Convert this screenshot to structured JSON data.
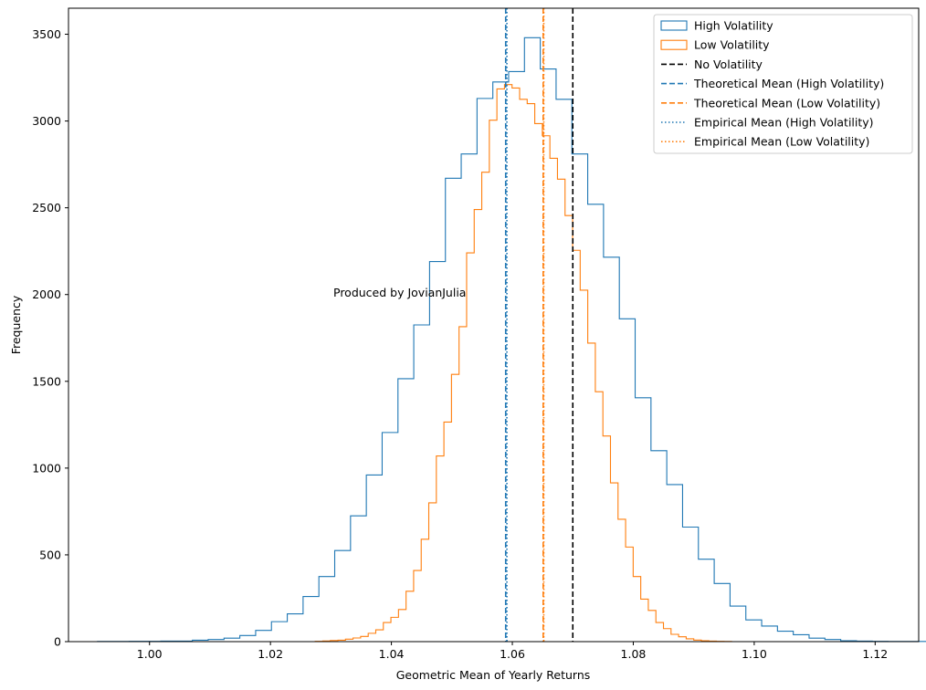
{
  "chart_data": {
    "type": "histogram",
    "title": "",
    "xlabel": "Geometric Mean of Yearly Returns",
    "ylabel": "Frequency",
    "xlim": [
      0.9866,
      1.1272
    ],
    "ylim": [
      0,
      3650
    ],
    "xticks": [
      1.0,
      1.02,
      1.04,
      1.06,
      1.08,
      1.1,
      1.12
    ],
    "xtick_labels": [
      "1.00",
      "1.02",
      "1.04",
      "1.06",
      "1.08",
      "1.10",
      "1.12"
    ],
    "yticks": [
      0,
      500,
      1000,
      1500,
      2000,
      2500,
      3000,
      3500
    ],
    "ytick_labels": [
      "0",
      "500",
      "1000",
      "1500",
      "2000",
      "2500",
      "3000",
      "3500"
    ],
    "annotation": {
      "text": "Produced by JovianJulia",
      "x": 1.03,
      "y": 2000
    },
    "legend_position": "top-right",
    "series": [
      {
        "name": "High Volatility",
        "color": "#1f77b4",
        "bin_start": 0.9914,
        "bin_width": 0.002615,
        "counts": [
          1,
          1,
          2,
          2,
          3,
          3,
          8,
          12,
          20,
          35,
          65,
          115,
          160,
          260,
          375,
          525,
          725,
          960,
          1205,
          1515,
          1825,
          2190,
          2670,
          2810,
          3130,
          3225,
          3285,
          3480,
          3300,
          3125,
          2810,
          2520,
          2215,
          1860,
          1405,
          1100,
          905,
          660,
          475,
          335,
          205,
          125,
          90,
          60,
          40,
          20,
          12,
          5,
          3,
          2,
          1,
          1,
          1
        ]
      },
      {
        "name": "Low Volatility",
        "color": "#ff7f0e",
        "bin_start": 1.0274,
        "bin_width": 0.001252,
        "counts": [
          2,
          4,
          6,
          8,
          14,
          21,
          30,
          48,
          68,
          110,
          140,
          185,
          290,
          410,
          590,
          800,
          1070,
          1265,
          1540,
          1815,
          2240,
          2490,
          2705,
          3005,
          3185,
          3210,
          3190,
          3125,
          3100,
          2985,
          2915,
          2785,
          2665,
          2455,
          2255,
          2025,
          1720,
          1440,
          1185,
          915,
          705,
          545,
          375,
          245,
          180,
          110,
          75,
          42,
          28,
          16,
          9,
          5,
          3,
          2,
          1
        ]
      }
    ],
    "vlines": [
      {
        "name": "No Volatility",
        "x": 1.07,
        "color": "#000000",
        "style": "dashed"
      },
      {
        "name": "Theoretical Mean (High Volatility)",
        "x": 1.0589,
        "color": "#1f77b4",
        "style": "dashed"
      },
      {
        "name": "Theoretical Mean (Low Volatility)",
        "x": 1.0651,
        "color": "#ff7f0e",
        "style": "dashed"
      },
      {
        "name": "Empirical Mean (High Volatility)",
        "x": 1.0591,
        "color": "#1f77b4",
        "style": "dotted"
      },
      {
        "name": "Empirical Mean (Low Volatility)",
        "x": 1.0652,
        "color": "#ff7f0e",
        "style": "dotted"
      }
    ],
    "legend": [
      {
        "label": "High Volatility",
        "kind": "patch",
        "color": "#1f77b4"
      },
      {
        "label": "Low Volatility",
        "kind": "patch",
        "color": "#ff7f0e"
      },
      {
        "label": "No Volatility",
        "kind": "dashed",
        "color": "#000000"
      },
      {
        "label": "Theoretical Mean (High Volatility)",
        "kind": "dashed",
        "color": "#1f77b4"
      },
      {
        "label": "Theoretical Mean (Low Volatility)",
        "kind": "dashed",
        "color": "#ff7f0e"
      },
      {
        "label": "Empirical Mean (High Volatility)",
        "kind": "dotted",
        "color": "#1f77b4"
      },
      {
        "label": "Empirical Mean (Low Volatility)",
        "kind": "dotted",
        "color": "#ff7f0e"
      }
    ]
  }
}
